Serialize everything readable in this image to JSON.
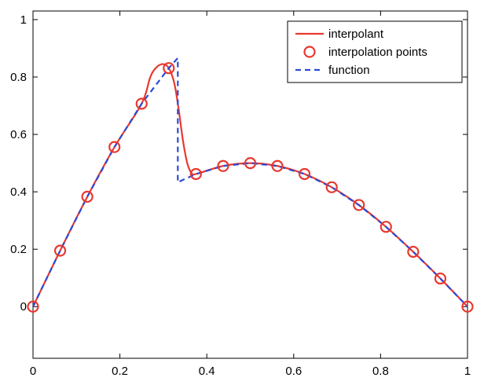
{
  "chart_data": {
    "type": "line",
    "xlim": [
      0,
      1
    ],
    "ylim": [
      -0.18,
      1.03
    ],
    "x_ticks": [
      0,
      0.2,
      0.4,
      0.6,
      0.8,
      1
    ],
    "y_ticks": [
      0,
      0.2,
      0.4,
      0.6,
      0.8,
      1
    ],
    "x_tick_labels": [
      "0",
      "0.2",
      "0.4",
      "0.6",
      "0.8",
      "1"
    ],
    "y_tick_labels": [
      "0",
      "0.2",
      "0.4",
      "0.6",
      "0.8",
      "1"
    ],
    "grid": false,
    "legend_position": "top-right",
    "series": [
      {
        "name": "interpolant",
        "style": "solid",
        "color": "#e8392f",
        "x": [
          0,
          0.0625,
          0.125,
          0.1875,
          0.25,
          0.27,
          0.285,
          0.3,
          0.3125,
          0.325,
          0.335,
          0.345,
          0.355,
          0.365,
          0.375,
          0.4375,
          0.5,
          0.5625,
          0.625,
          0.6875,
          0.75,
          0.8125,
          0.875,
          0.9375,
          1
        ],
        "y": [
          0,
          0.195,
          0.383,
          0.556,
          0.707,
          0.8,
          0.835,
          0.845,
          0.831,
          0.78,
          0.69,
          0.58,
          0.5,
          0.465,
          0.462,
          0.49,
          0.5,
          0.49,
          0.462,
          0.416,
          0.354,
          0.278,
          0.191,
          0.098,
          0
        ]
      },
      {
        "name": "interpolation points",
        "style": "markers",
        "color": "#e8392f",
        "x": [
          0,
          0.0625,
          0.125,
          0.1875,
          0.25,
          0.3125,
          0.375,
          0.4375,
          0.5,
          0.5625,
          0.625,
          0.6875,
          0.75,
          0.8125,
          0.875,
          0.9375,
          1
        ],
        "y": [
          0,
          0.195,
          0.383,
          0.556,
          0.707,
          0.831,
          0.462,
          0.49,
          0.5,
          0.49,
          0.462,
          0.416,
          0.354,
          0.278,
          0.191,
          0.098,
          0
        ]
      },
      {
        "name": "function",
        "style": "dashed",
        "color": "#2a4bd7",
        "x": [
          0,
          0.0625,
          0.125,
          0.1875,
          0.25,
          0.3125,
          0.3333,
          0.3333,
          0.35,
          0.375,
          0.4375,
          0.5,
          0.5625,
          0.625,
          0.6875,
          0.75,
          0.8125,
          0.875,
          0.9375,
          1
        ],
        "y": [
          0,
          0.195,
          0.383,
          0.556,
          0.707,
          0.831,
          0.866,
          0.433,
          0.445,
          0.462,
          0.49,
          0.5,
          0.49,
          0.462,
          0.416,
          0.354,
          0.278,
          0.191,
          0.098,
          0
        ]
      }
    ]
  }
}
